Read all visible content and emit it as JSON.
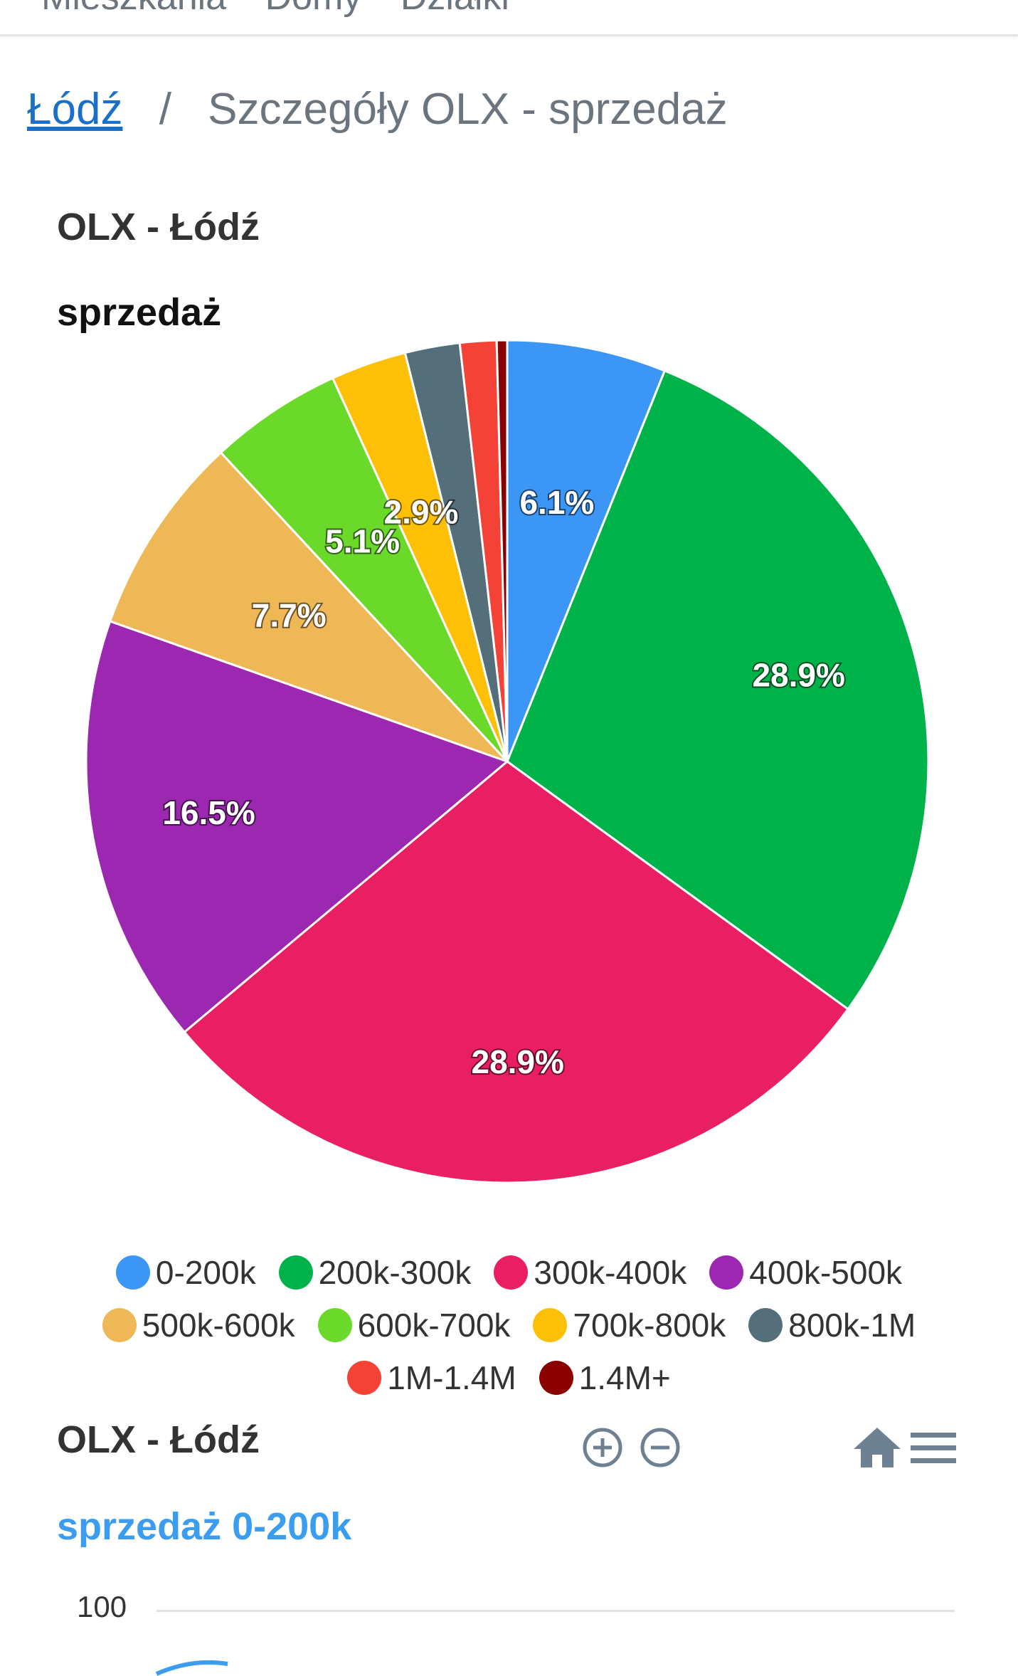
{
  "nav": {
    "items": [
      "Mieszkania",
      "Domy",
      "Działki"
    ]
  },
  "breadcrumb": {
    "home": "Łódź",
    "separator": "/",
    "current": "Szczegóły OLX - sprzedaż"
  },
  "chart1": {
    "title": "OLX - Łódź",
    "subtitle": "sprzedaż"
  },
  "chart_data": [
    {
      "type": "pie",
      "title": "OLX - Łódź",
      "subtitle": "sprzedaż",
      "legend_position": "bottom",
      "slices": [
        {
          "label": "0-200k",
          "value": 6.1,
          "color": "#3b96f5",
          "data_label": "6.1%"
        },
        {
          "label": "200k-300k",
          "value": 28.9,
          "color": "#00b24a",
          "data_label": "28.9%"
        },
        {
          "label": "300k-400k",
          "value": 28.9,
          "color": "#e91e63",
          "data_label": "28.9%"
        },
        {
          "label": "400k-500k",
          "value": 16.5,
          "color": "#9c27b0",
          "data_label": "16.5%"
        },
        {
          "label": "500k-600k",
          "value": 7.7,
          "color": "#efb857",
          "data_label": "7.7%"
        },
        {
          "label": "600k-700k",
          "value": 5.1,
          "color": "#6ad92a",
          "data_label": "5.1%"
        },
        {
          "label": "700k-800k",
          "value": 2.9,
          "color": "#fdc007",
          "data_label": "2.9%"
        },
        {
          "label": "800k-1M",
          "value": 2.1,
          "color": "#546e7a",
          "data_label": ""
        },
        {
          "label": "1M-1.4M",
          "value": 1.4,
          "color": "#f44336",
          "data_label": ""
        },
        {
          "label": "1.4M+",
          "value": 0.4,
          "color": "#8b0000",
          "data_label": ""
        }
      ]
    },
    {
      "type": "line",
      "title": "OLX - Łódź",
      "subtitle": "sprzedaż 0-200k",
      "y_ticks": [
        100
      ],
      "series": []
    }
  ],
  "chart2": {
    "title": "OLX - Łódź",
    "subtitle": "sprzedaż 0-200k",
    "y_tick_top": "100",
    "toolbar": {
      "zoom_in": "zoom-in-icon",
      "zoom_out": "zoom-out-icon",
      "home": "home-icon",
      "menu": "menu-icon"
    },
    "colors": {
      "toolbar_icon": "#6e8192",
      "series": "#3a9df0"
    }
  }
}
